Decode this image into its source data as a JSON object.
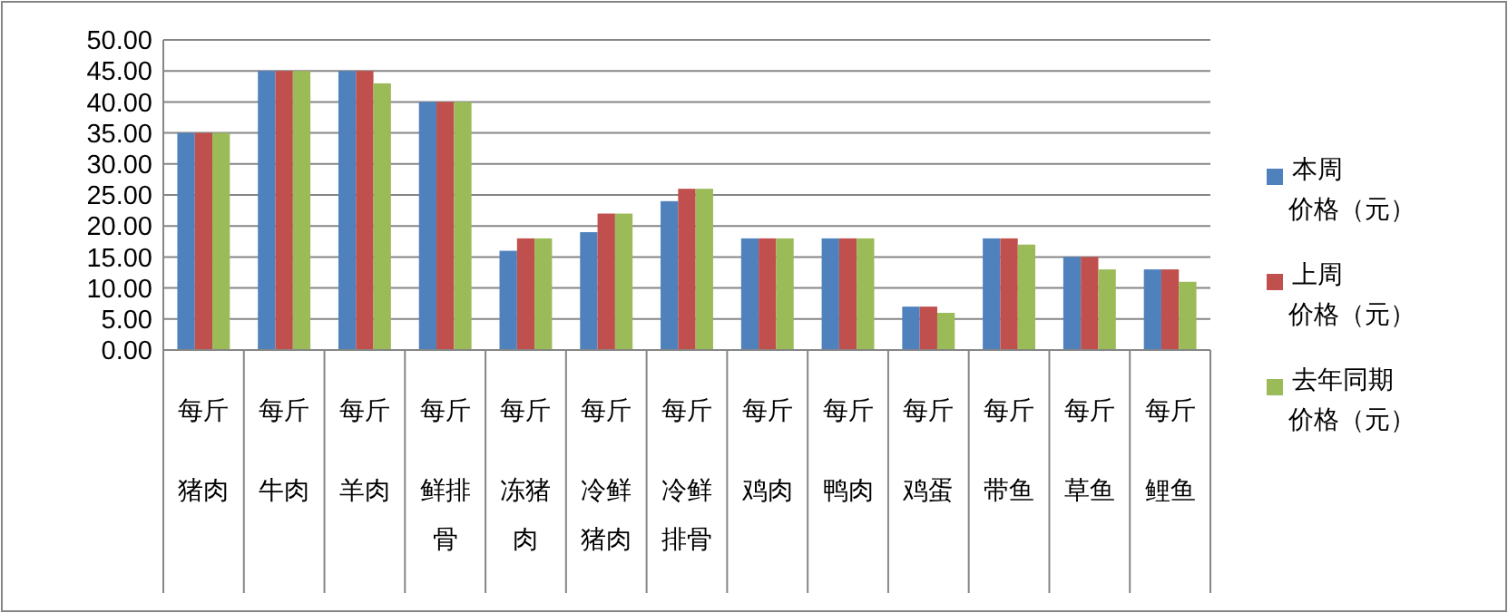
{
  "chart_data": {
    "type": "bar",
    "categories": [
      "每斤猪肉",
      "每斤牛肉",
      "每斤羊肉",
      "每斤鲜排骨",
      "每斤冻猪肉",
      "每斤冷鲜猪肉",
      "每斤冷鲜排骨",
      "每斤鸡肉",
      "每斤鸭肉",
      "每斤鸡蛋",
      "每斤带鱼",
      "每斤草鱼",
      "每斤鲤鱼"
    ],
    "series": [
      {
        "name": "本周价格（元）",
        "color": "#4f81bd",
        "values": [
          35,
          45,
          45,
          40,
          16,
          19,
          24,
          18,
          18,
          7,
          18,
          15,
          13
        ]
      },
      {
        "name": "上周价格（元）",
        "color": "#c0504d",
        "values": [
          35,
          45,
          45,
          40,
          18,
          22,
          26,
          18,
          18,
          7,
          18,
          15,
          13
        ]
      },
      {
        "name": "去年同期价格（元）",
        "color": "#9bbb59",
        "values": [
          35,
          45,
          43,
          40,
          18,
          22,
          26,
          18,
          18,
          6,
          17,
          13,
          11
        ]
      }
    ],
    "ylim": [
      0,
      50
    ],
    "yticks": [
      {
        "value": 0,
        "label": "0.00"
      },
      {
        "value": 5,
        "label": "5.00"
      },
      {
        "value": 10,
        "label": "10.00"
      },
      {
        "value": 15,
        "label": "15.00"
      },
      {
        "value": 20,
        "label": "20.00"
      },
      {
        "value": 25,
        "label": "25.00"
      },
      {
        "value": 30,
        "label": "30.00"
      },
      {
        "value": 35,
        "label": "35.00"
      },
      {
        "value": 40,
        "label": "40.00"
      },
      {
        "value": 45,
        "label": "45.00"
      },
      {
        "value": 50,
        "label": "50.00"
      }
    ],
    "grid": "y",
    "legend": "right"
  }
}
